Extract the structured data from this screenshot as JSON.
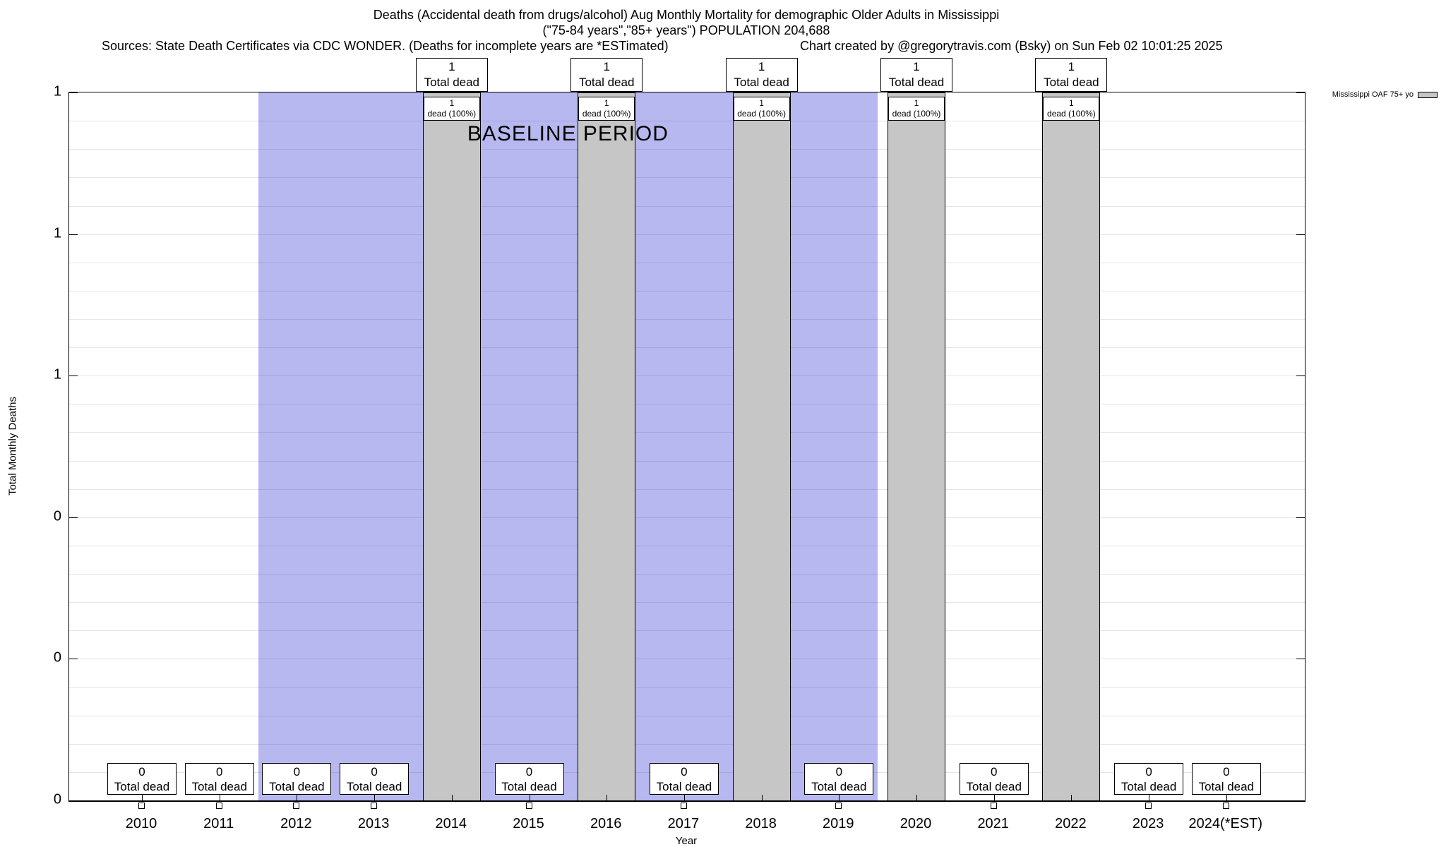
{
  "chart_data": {
    "type": "bar",
    "title": "Deaths (Accidental death from drugs/alcohol) Aug Monthly Mortality for demographic Older Adults in Mississippi",
    "subtitle": "(\"75-84 years\",\"85+ years\") POPULATION 204,688",
    "sources_note": "Sources: State Death Certificates via CDC WONDER. (Deaths for incomplete years are *ESTimated)",
    "credit_note": "Chart created by @gregorytravis.com (Bsky) on Sun Feb 02 10:01:25 2025",
    "xlabel": "Year",
    "ylabel": "Total Monthly Deaths",
    "ylim": [
      0,
      1
    ],
    "grid": true,
    "legend_position": "top-right",
    "legend": {
      "label": "Mississippi OAF 75+ yo"
    },
    "categories": [
      "2010",
      "2011",
      "2012",
      "2013",
      "2014",
      "2015",
      "2016",
      "2017",
      "2018",
      "2019",
      "2020",
      "2021",
      "2022",
      "2023",
      "2024(*EST)"
    ],
    "values": [
      0,
      0,
      0,
      0,
      1,
      0,
      1,
      0,
      1,
      0,
      1,
      0,
      1,
      0,
      0
    ],
    "yticks": [
      {
        "value": 0.0,
        "label": "0"
      },
      {
        "value": 0.2,
        "label": "0"
      },
      {
        "value": 0.4,
        "label": "0"
      },
      {
        "value": 0.6,
        "label": "1"
      },
      {
        "value": 0.8,
        "label": "1"
      },
      {
        "value": 1.0,
        "label": "1"
      }
    ],
    "baseline": {
      "label": "BASELINE PERIOD",
      "from_year": 2012,
      "to_year": 2019
    },
    "years": [
      {
        "label": "2010",
        "value": 0,
        "bottom_box": [
          "0",
          "Total dead"
        ],
        "marker": true
      },
      {
        "label": "2011",
        "value": 0,
        "bottom_box": [
          "0",
          "Total dead"
        ],
        "marker": true
      },
      {
        "label": "2012",
        "value": 0,
        "bottom_box": [
          "0",
          "Total dead"
        ],
        "marker": true
      },
      {
        "label": "2013",
        "value": 0,
        "bottom_box": [
          "0",
          "Total dead"
        ],
        "marker": true
      },
      {
        "label": "2014",
        "value": 1,
        "top_box": [
          "1",
          "Total dead"
        ],
        "bar_box": [
          "1",
          "dead (100%)"
        ]
      },
      {
        "label": "2015",
        "value": 0,
        "bottom_box": [
          "0",
          "Total dead"
        ],
        "marker": true
      },
      {
        "label": "2016",
        "value": 1,
        "top_box": [
          "1",
          "Total dead"
        ],
        "bar_box": [
          "1",
          "dead (100%)"
        ]
      },
      {
        "label": "2017",
        "value": 0,
        "bottom_box": [
          "0",
          "Total dead"
        ],
        "marker": true
      },
      {
        "label": "2018",
        "value": 1,
        "top_box": [
          "1",
          "Total dead"
        ],
        "bar_box": [
          "1",
          "dead (100%)"
        ]
      },
      {
        "label": "2019",
        "value": 0,
        "bottom_box": [
          "0",
          "Total dead"
        ],
        "marker": true
      },
      {
        "label": "2020",
        "value": 1,
        "top_box": [
          "1",
          "Total dead"
        ],
        "bar_box": [
          "1",
          "dead (100%)"
        ]
      },
      {
        "label": "2021",
        "value": 0,
        "bottom_box": [
          "0",
          "Total dead"
        ],
        "marker": true
      },
      {
        "label": "2022",
        "value": 1,
        "top_box": [
          "1",
          "Total dead"
        ],
        "bar_box": [
          "1",
          "dead (100%)"
        ]
      },
      {
        "label": "2023",
        "value": 0,
        "bottom_box": [
          "0",
          "Total dead"
        ],
        "marker": true
      },
      {
        "label": "2024(*EST)",
        "value": 0,
        "bottom_box": [
          "0",
          "Total dead"
        ],
        "marker": true
      }
    ],
    "colors": {
      "baseline_fill": "#b8b8f0",
      "bar_fill": "#c6c6c6",
      "box_fill": "#ffffff",
      "border": "#000000"
    }
  }
}
